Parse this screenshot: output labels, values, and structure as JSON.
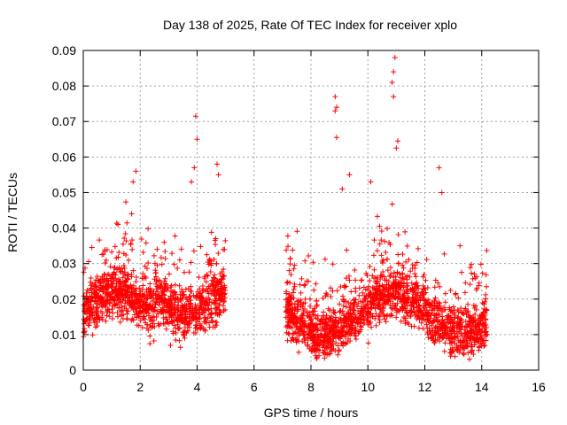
{
  "chart_data": {
    "type": "scatter",
    "title": "Day 138 of 2025, Rate Of TEC Index for receiver xplo",
    "xlabel": "GPS time / hours",
    "ylabel": "ROTI / TECUs",
    "xlim": [
      0,
      16
    ],
    "ylim": [
      0,
      0.09
    ],
    "xticks": [
      0,
      2,
      4,
      6,
      8,
      10,
      12,
      14,
      16
    ],
    "xtick_labels": [
      "0",
      "2",
      "4",
      "6",
      "8",
      "10",
      "12",
      "14",
      "16"
    ],
    "yticks": [
      0,
      0.01,
      0.02,
      0.03,
      0.04,
      0.05,
      0.06,
      0.07,
      0.08,
      0.09
    ],
    "ytick_labels": [
      "0",
      "0.01",
      "0.02",
      "0.03",
      "0.04",
      "0.05",
      "0.06",
      "0.07",
      "0.08",
      "0.09"
    ],
    "grid": true,
    "marker": "+",
    "color": "#ff0000",
    "series": [
      {
        "name": "ROTI",
        "segments": [
          {
            "x_start": 0.0,
            "x_end": 5.0,
            "typical_range": [
              0.007,
              0.035
            ]
          },
          {
            "x_start": 7.1,
            "x_end": 14.2,
            "typical_range": [
              0.006,
              0.038
            ]
          }
        ],
        "outliers": [
          {
            "x": 1.75,
            "y": 0.053
          },
          {
            "x": 1.85,
            "y": 0.056
          },
          {
            "x": 1.7,
            "y": 0.044
          },
          {
            "x": 3.95,
            "y": 0.0715
          },
          {
            "x": 4.0,
            "y": 0.065
          },
          {
            "x": 3.9,
            "y": 0.057
          },
          {
            "x": 4.7,
            "y": 0.058
          },
          {
            "x": 4.75,
            "y": 0.055
          },
          {
            "x": 3.8,
            "y": 0.053
          },
          {
            "x": 8.85,
            "y": 0.077
          },
          {
            "x": 8.9,
            "y": 0.074
          },
          {
            "x": 8.85,
            "y": 0.073
          },
          {
            "x": 8.9,
            "y": 0.0655
          },
          {
            "x": 10.95,
            "y": 0.088
          },
          {
            "x": 10.9,
            "y": 0.084
          },
          {
            "x": 10.85,
            "y": 0.081
          },
          {
            "x": 10.9,
            "y": 0.077
          },
          {
            "x": 11.05,
            "y": 0.0645
          },
          {
            "x": 11.0,
            "y": 0.0625
          },
          {
            "x": 12.5,
            "y": 0.057
          },
          {
            "x": 12.6,
            "y": 0.05
          },
          {
            "x": 9.35,
            "y": 0.055
          },
          {
            "x": 10.1,
            "y": 0.053
          },
          {
            "x": 9.1,
            "y": 0.051
          }
        ]
      }
    ]
  }
}
